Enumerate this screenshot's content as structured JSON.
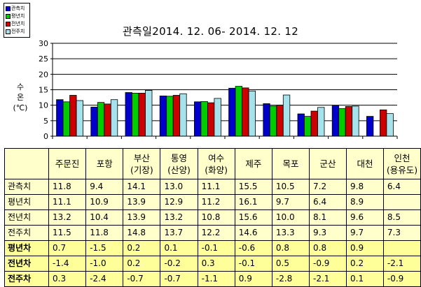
{
  "legend": [
    {
      "label": "관측치",
      "color": "#0000cc"
    },
    {
      "label": "평년치",
      "color": "#00cc00"
    },
    {
      "label": "전년치",
      "color": "#cc0000"
    },
    {
      "label": "전주치",
      "color": "#a6e2ec"
    }
  ],
  "chart_data": {
    "type": "bar",
    "title": "관측일2014. 12. 06-  2014. 12. 12",
    "ylabel": [
      "수",
      "온",
      "(℃)"
    ],
    "ylim": [
      0,
      30
    ],
    "yticks": [
      0,
      5,
      10,
      15,
      20,
      25,
      30
    ],
    "grid": true,
    "legend_position": "top-left",
    "categories": [
      "주문진",
      "포항",
      "부산",
      "통영",
      "여수",
      "제주",
      "목포",
      "군산",
      "대천",
      "인천"
    ],
    "series": [
      {
        "name": "관측치",
        "color": "#0000cc",
        "values": [
          11.8,
          9.4,
          14.1,
          13.0,
          11.1,
          15.5,
          10.5,
          7.2,
          9.8,
          6.4
        ]
      },
      {
        "name": "평년치",
        "color": "#00cc00",
        "values": [
          11.1,
          10.9,
          13.9,
          12.9,
          11.2,
          16.1,
          9.7,
          6.4,
          8.9,
          null
        ]
      },
      {
        "name": "전년치",
        "color": "#cc0000",
        "values": [
          13.2,
          10.4,
          13.9,
          13.2,
          10.8,
          15.6,
          10.0,
          8.1,
          9.6,
          8.5
        ]
      },
      {
        "name": "전주치",
        "color": "#a6e2ec",
        "values": [
          11.5,
          11.8,
          14.8,
          13.7,
          12.2,
          14.6,
          13.3,
          9.3,
          9.7,
          7.3
        ]
      }
    ]
  },
  "table": {
    "headers": [
      [
        "주문진"
      ],
      [
        "포항"
      ],
      [
        "부산",
        "(기장)"
      ],
      [
        "통영",
        "(산양)"
      ],
      [
        "여수",
        "(화양)"
      ],
      [
        "제주"
      ],
      [
        "목포"
      ],
      [
        "군산"
      ],
      [
        "대천"
      ],
      [
        "인천",
        "(용유도)"
      ]
    ],
    "rows": [
      {
        "label": "관측치",
        "values": [
          "11.8",
          "9.4",
          "14.1",
          "13.0",
          "11.1",
          "15.5",
          "10.5",
          "7.2",
          "9.8",
          "6.4"
        ]
      },
      {
        "label": "평년치",
        "values": [
          "11.1",
          "10.9",
          "13.9",
          "12.9",
          "11.2",
          "16.1",
          "9.7",
          "6.4",
          "8.9",
          ""
        ]
      },
      {
        "label": "전년치",
        "values": [
          "13.2",
          "10.4",
          "13.9",
          "13.2",
          "10.8",
          "15.6",
          "10.0",
          "8.1",
          "9.6",
          "8.5"
        ]
      },
      {
        "label": "전주치",
        "values": [
          "11.5",
          "11.8",
          "14.8",
          "13.7",
          "12.2",
          "14.6",
          "13.3",
          "9.3",
          "9.7",
          "7.3"
        ]
      },
      {
        "label": "평년차",
        "diff": true,
        "values": [
          "0.7",
          "-1.5",
          "0.2",
          "0.1",
          "-0.1",
          "-0.6",
          "0.8",
          "0.8",
          "0.9",
          ""
        ]
      },
      {
        "label": "전년차",
        "diff": true,
        "values": [
          "-1.4",
          "-1.0",
          "0.2",
          "-0.2",
          "0.3",
          "-0.1",
          "0.5",
          "-0.9",
          "0.2",
          "-2.1"
        ]
      },
      {
        "label": "전주차",
        "diff": true,
        "values": [
          "0.3",
          "-2.4",
          "-0.7",
          "-0.7",
          "-1.1",
          "0.9",
          "-2.8",
          "-2.1",
          "0.1",
          "-0.9"
        ]
      }
    ]
  }
}
